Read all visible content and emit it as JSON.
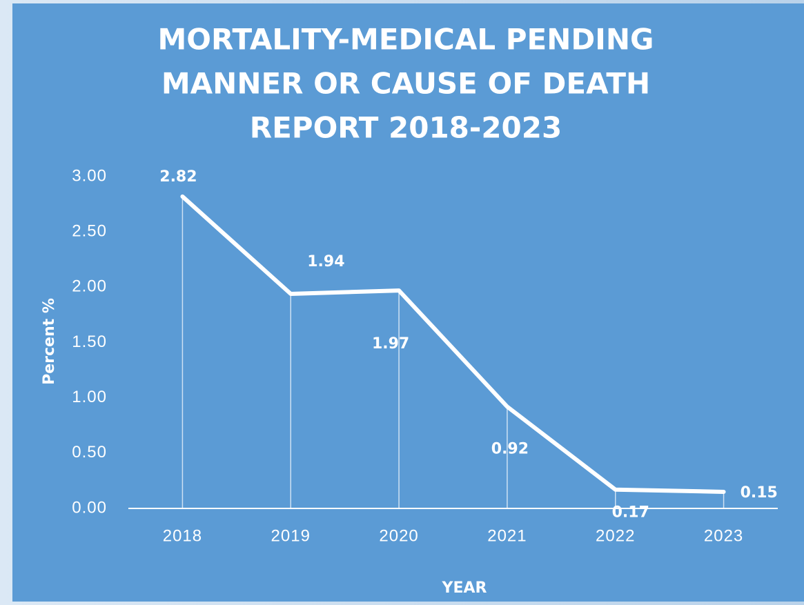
{
  "chart_data": {
    "type": "line",
    "title": [
      "MORTALITY-MEDICAL PENDING",
      "MANNER OR CAUSE OF DEATH",
      "REPORT 2018-2023"
    ],
    "xlabel": "YEAR",
    "ylabel": "Percent %",
    "categories": [
      "2018",
      "2019",
      "2020",
      "2021",
      "2022",
      "2023"
    ],
    "series": [
      {
        "name": "Percent %",
        "color": "#ffffff",
        "values": [
          2.82,
          1.94,
          1.97,
          0.92,
          0.17,
          0.15
        ]
      }
    ],
    "ylim": [
      0,
      3
    ],
    "yticks": [
      {
        "value": 0,
        "label": "0.00"
      },
      {
        "value": 0.5,
        "label": "0.50"
      },
      {
        "value": 1,
        "label": "1.00"
      },
      {
        "value": 1.5,
        "label": "1.50"
      },
      {
        "value": 2,
        "label": "2.00"
      },
      {
        "value": 2.5,
        "label": "2.50"
      },
      {
        "value": 3,
        "label": "3.00"
      }
    ],
    "grid": false,
    "background": "#5b9bd5"
  }
}
